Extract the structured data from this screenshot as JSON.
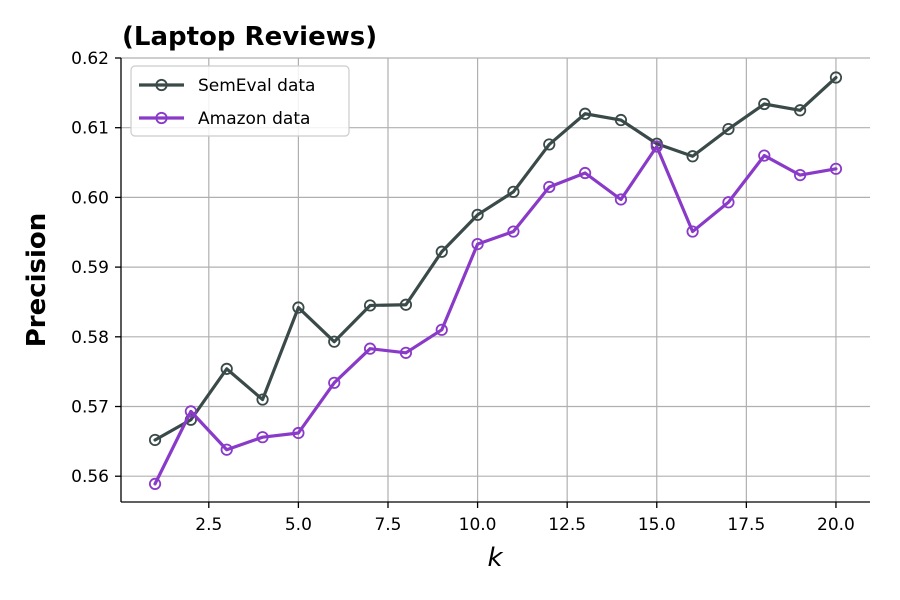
{
  "chart_data": {
    "type": "line",
    "title": "(Laptop Reviews)",
    "xlabel": "k",
    "ylabel": "Precision",
    "xlim": [
      0.05,
      20.95
    ],
    "ylim": [
      0.5563,
      0.62
    ],
    "xticks": [
      2.5,
      5.0,
      7.5,
      10.0,
      12.5,
      15.0,
      17.5,
      20.0
    ],
    "xtick_labels": [
      "2.5",
      "5.0",
      "7.5",
      "10.0",
      "12.5",
      "15.0",
      "17.5",
      "20.0"
    ],
    "yticks": [
      0.56,
      0.57,
      0.58,
      0.59,
      0.6,
      0.61,
      0.62
    ],
    "ytick_labels": [
      "0.56",
      "0.57",
      "0.58",
      "0.59",
      "0.60",
      "0.61",
      "0.62"
    ],
    "grid": true,
    "legend_position": "top-left",
    "x": [
      1,
      2,
      3,
      4,
      5,
      6,
      7,
      8,
      9,
      10,
      11,
      12,
      13,
      14,
      15,
      16,
      17,
      18,
      19,
      20
    ],
    "series": [
      {
        "name": "SemEval data",
        "color": "#3a4a48",
        "values": [
          0.5652,
          0.5681,
          0.5754,
          0.571,
          0.5842,
          0.5793,
          0.5845,
          0.5846,
          0.5922,
          0.5975,
          0.6008,
          0.6076,
          0.612,
          0.6111,
          0.6077,
          0.6059,
          0.6098,
          0.6134,
          0.6125,
          0.6172
        ]
      },
      {
        "name": "Amazon data",
        "color": "#8a3ac8",
        "values": [
          0.5589,
          0.5693,
          0.5638,
          0.5656,
          0.5662,
          0.5734,
          0.5783,
          0.5777,
          0.581,
          0.5933,
          0.5951,
          0.6015,
          0.6035,
          0.5997,
          0.6073,
          0.5951,
          0.5993,
          0.606,
          0.6032,
          0.6041
        ]
      }
    ]
  }
}
